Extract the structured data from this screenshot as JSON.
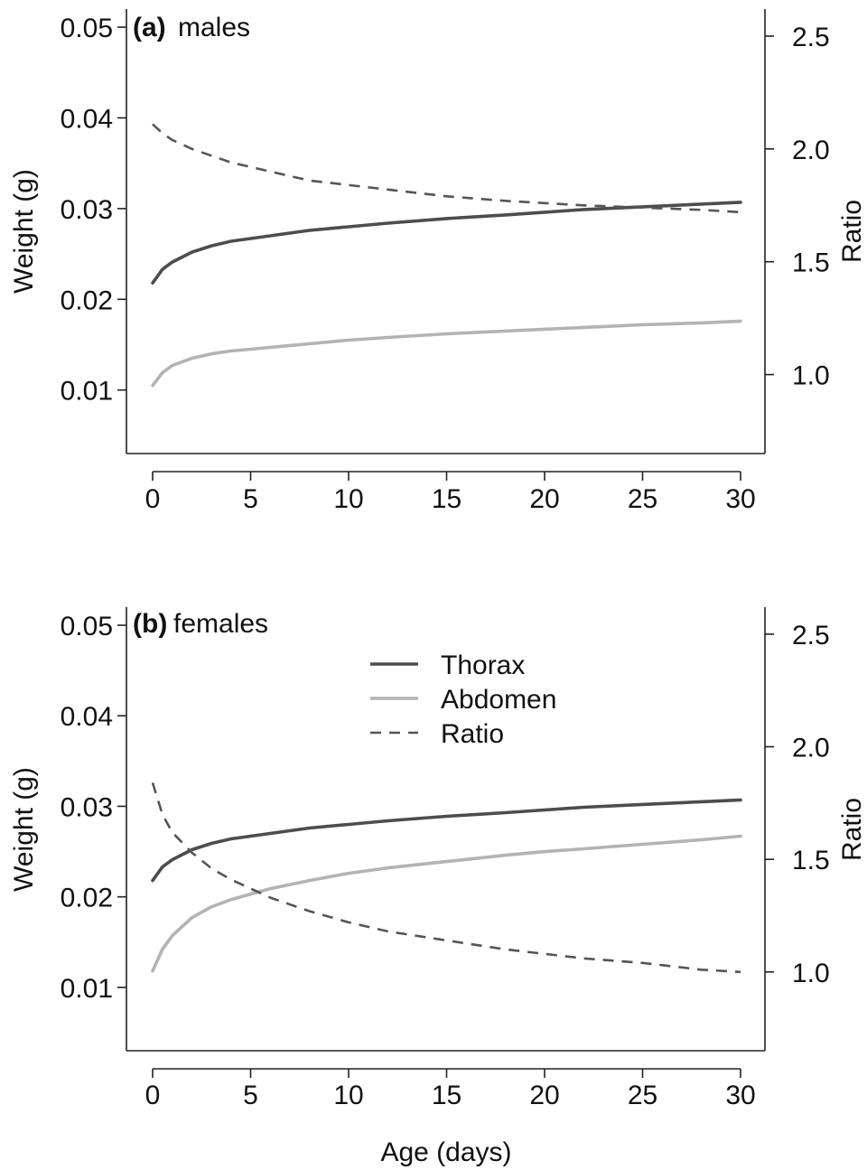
{
  "chart_data": [
    {
      "type": "line",
      "panel": "(a)",
      "title": "males",
      "xlabel": "",
      "ylabel": "Weight (g)",
      "y2label": "Ratio",
      "xlim": [
        0,
        30
      ],
      "ylim": [
        0.003,
        0.052
      ],
      "y2lim": [
        0.65,
        2.62
      ],
      "xticks": [
        0,
        5,
        10,
        15,
        20,
        25,
        30
      ],
      "yticks": [
        0.01,
        0.02,
        0.03,
        0.04,
        0.05
      ],
      "y2ticks": [
        1.0,
        1.5,
        2.0,
        2.5
      ],
      "xtick_labels": [
        "0",
        "5",
        "10",
        "15",
        "20",
        "25",
        "30"
      ],
      "ytick_labels": [
        "0.01",
        "0.02",
        "0.03",
        "0.04",
        "0.05"
      ],
      "y2tick_labels": [
        "1.0",
        "1.5",
        "2.0",
        "2.5"
      ],
      "grid": false,
      "series": [
        {
          "name": "Thorax",
          "axis": "left",
          "style": "solid",
          "color": "#4d4d4d",
          "x": [
            0,
            0.5,
            1,
            2,
            3,
            4,
            5,
            6,
            8,
            10,
            12,
            15,
            18,
            20,
            22,
            25,
            28,
            30
          ],
          "y": [
            0.0218,
            0.0233,
            0.0241,
            0.0252,
            0.0259,
            0.0264,
            0.0267,
            0.027,
            0.0276,
            0.028,
            0.0284,
            0.0289,
            0.0293,
            0.0296,
            0.0299,
            0.0302,
            0.0305,
            0.0307
          ]
        },
        {
          "name": "Abdomen",
          "axis": "left",
          "style": "solid",
          "color": "#b3b3b3",
          "x": [
            0,
            0.5,
            1,
            2,
            3,
            4,
            5,
            6,
            8,
            10,
            12,
            15,
            18,
            20,
            22,
            25,
            28,
            30
          ],
          "y": [
            0.0105,
            0.0119,
            0.0127,
            0.0135,
            0.014,
            0.0143,
            0.0145,
            0.0147,
            0.0151,
            0.0155,
            0.0158,
            0.0162,
            0.0165,
            0.0167,
            0.0169,
            0.0172,
            0.0174,
            0.0176
          ]
        },
        {
          "name": "Ratio",
          "axis": "right",
          "style": "dashed",
          "color": "#555555",
          "x": [
            0,
            0.5,
            1,
            2,
            3,
            4,
            5,
            6,
            8,
            10,
            12,
            15,
            18,
            20,
            22,
            25,
            28,
            30
          ],
          "y": [
            2.11,
            2.07,
            2.04,
            2.0,
            1.97,
            1.94,
            1.92,
            1.9,
            1.86,
            1.84,
            1.82,
            1.79,
            1.77,
            1.76,
            1.75,
            1.74,
            1.73,
            1.72
          ]
        }
      ]
    },
    {
      "type": "line",
      "panel": "(b)",
      "title": "females",
      "xlabel": "Age (days)",
      "ylabel": "Weight (g)",
      "y2label": "Ratio",
      "xlim": [
        0,
        30
      ],
      "ylim": [
        0.003,
        0.052
      ],
      "y2lim": [
        0.65,
        2.62
      ],
      "xticks": [
        0,
        5,
        10,
        15,
        20,
        25,
        30
      ],
      "yticks": [
        0.01,
        0.02,
        0.03,
        0.04,
        0.05
      ],
      "y2ticks": [
        1.0,
        1.5,
        2.0,
        2.5
      ],
      "xtick_labels": [
        "0",
        "5",
        "10",
        "15",
        "20",
        "25",
        "30"
      ],
      "ytick_labels": [
        "0.01",
        "0.02",
        "0.03",
        "0.04",
        "0.05"
      ],
      "y2tick_labels": [
        "1.0",
        "1.5",
        "2.0",
        "2.5"
      ],
      "grid": false,
      "legend": {
        "placement": "top-center",
        "entries": [
          "Thorax",
          "Abdomen",
          "Ratio"
        ]
      },
      "series": [
        {
          "name": "Thorax",
          "axis": "left",
          "style": "solid",
          "color": "#4d4d4d",
          "x": [
            0,
            0.5,
            1,
            2,
            3,
            4,
            5,
            6,
            8,
            10,
            12,
            15,
            18,
            20,
            22,
            25,
            28,
            30
          ],
          "y": [
            0.0218,
            0.0233,
            0.0241,
            0.0252,
            0.0259,
            0.0264,
            0.0267,
            0.027,
            0.0276,
            0.028,
            0.0284,
            0.0289,
            0.0293,
            0.0296,
            0.0299,
            0.0302,
            0.0305,
            0.0307
          ]
        },
        {
          "name": "Abdomen",
          "axis": "left",
          "style": "solid",
          "color": "#b3b3b3",
          "x": [
            0,
            0.5,
            1,
            2,
            3,
            4,
            5,
            6,
            8,
            10,
            12,
            15,
            18,
            20,
            22,
            25,
            28,
            30
          ],
          "y": [
            0.0118,
            0.0142,
            0.0157,
            0.0177,
            0.0189,
            0.0197,
            0.0203,
            0.0209,
            0.0218,
            0.0226,
            0.0232,
            0.0239,
            0.0246,
            0.025,
            0.0253,
            0.0258,
            0.0263,
            0.0267
          ]
        },
        {
          "name": "Ratio",
          "axis": "right",
          "style": "dashed",
          "color": "#555555",
          "x": [
            0,
            0.5,
            1,
            2,
            3,
            4,
            5,
            6,
            8,
            10,
            12,
            15,
            18,
            20,
            22,
            25,
            28,
            30
          ],
          "y": [
            1.84,
            1.7,
            1.62,
            1.53,
            1.46,
            1.41,
            1.37,
            1.33,
            1.27,
            1.22,
            1.18,
            1.14,
            1.1,
            1.08,
            1.06,
            1.04,
            1.01,
            1.0
          ]
        }
      ]
    }
  ]
}
